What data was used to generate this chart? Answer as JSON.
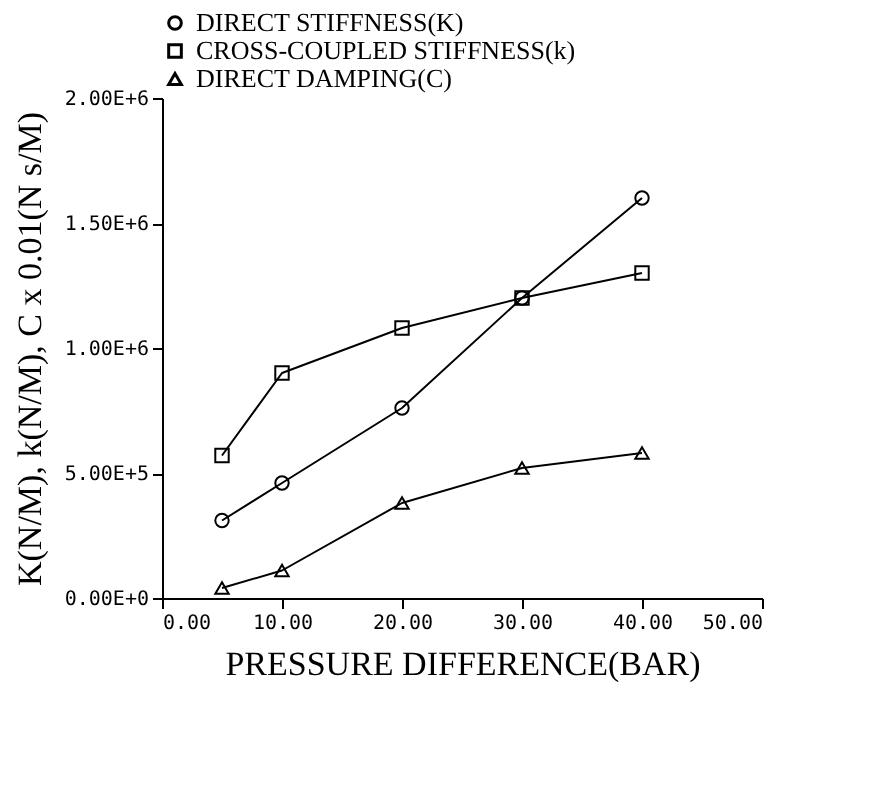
{
  "chart_data": {
    "type": "line",
    "xlabel": "PRESSURE DIFFERENCE(BAR)",
    "ylabel": "K(N/M), k(N/M), C x 0.01(N s/M)",
    "x": [
      5,
      10,
      20,
      30,
      40
    ],
    "series": [
      {
        "name": "DIRECT STIFFNESS(K)",
        "color": "#000000",
        "marker": "circle",
        "values": [
          310000,
          460000,
          760000,
          1200000,
          1600000
        ]
      },
      {
        "name": "CROSS-COUPLED STIFFNESS(k)",
        "color": "#000000",
        "marker": "square",
        "values": [
          570000,
          900000,
          1080000,
          1200000,
          1300000
        ]
      },
      {
        "name": "DIRECT DAMPING(C)",
        "color": "#000000",
        "marker": "triangle",
        "values": [
          40000,
          110000,
          380000,
          520000,
          580000
        ]
      }
    ],
    "xlim": [
      0,
      50
    ],
    "ylim": [
      0,
      2000000
    ],
    "xticks": [
      {
        "value": 0,
        "label": "0.00"
      },
      {
        "value": 10,
        "label": "10.00"
      },
      {
        "value": 20,
        "label": "20.00"
      },
      {
        "value": 30,
        "label": "30.00"
      },
      {
        "value": 40,
        "label": "40.00"
      },
      {
        "value": 50,
        "label": "50.00"
      }
    ],
    "yticks": [
      {
        "value": 0,
        "label": "0.00E+0"
      },
      {
        "value": 500000,
        "label": "5.00E+5"
      },
      {
        "value": 1000000,
        "label": "1.00E+6"
      },
      {
        "value": 1500000,
        "label": "1.50E+6"
      },
      {
        "value": 2000000,
        "label": "2.00E+6"
      }
    ],
    "grid": false,
    "legend": "top",
    "line_style": "solid"
  }
}
